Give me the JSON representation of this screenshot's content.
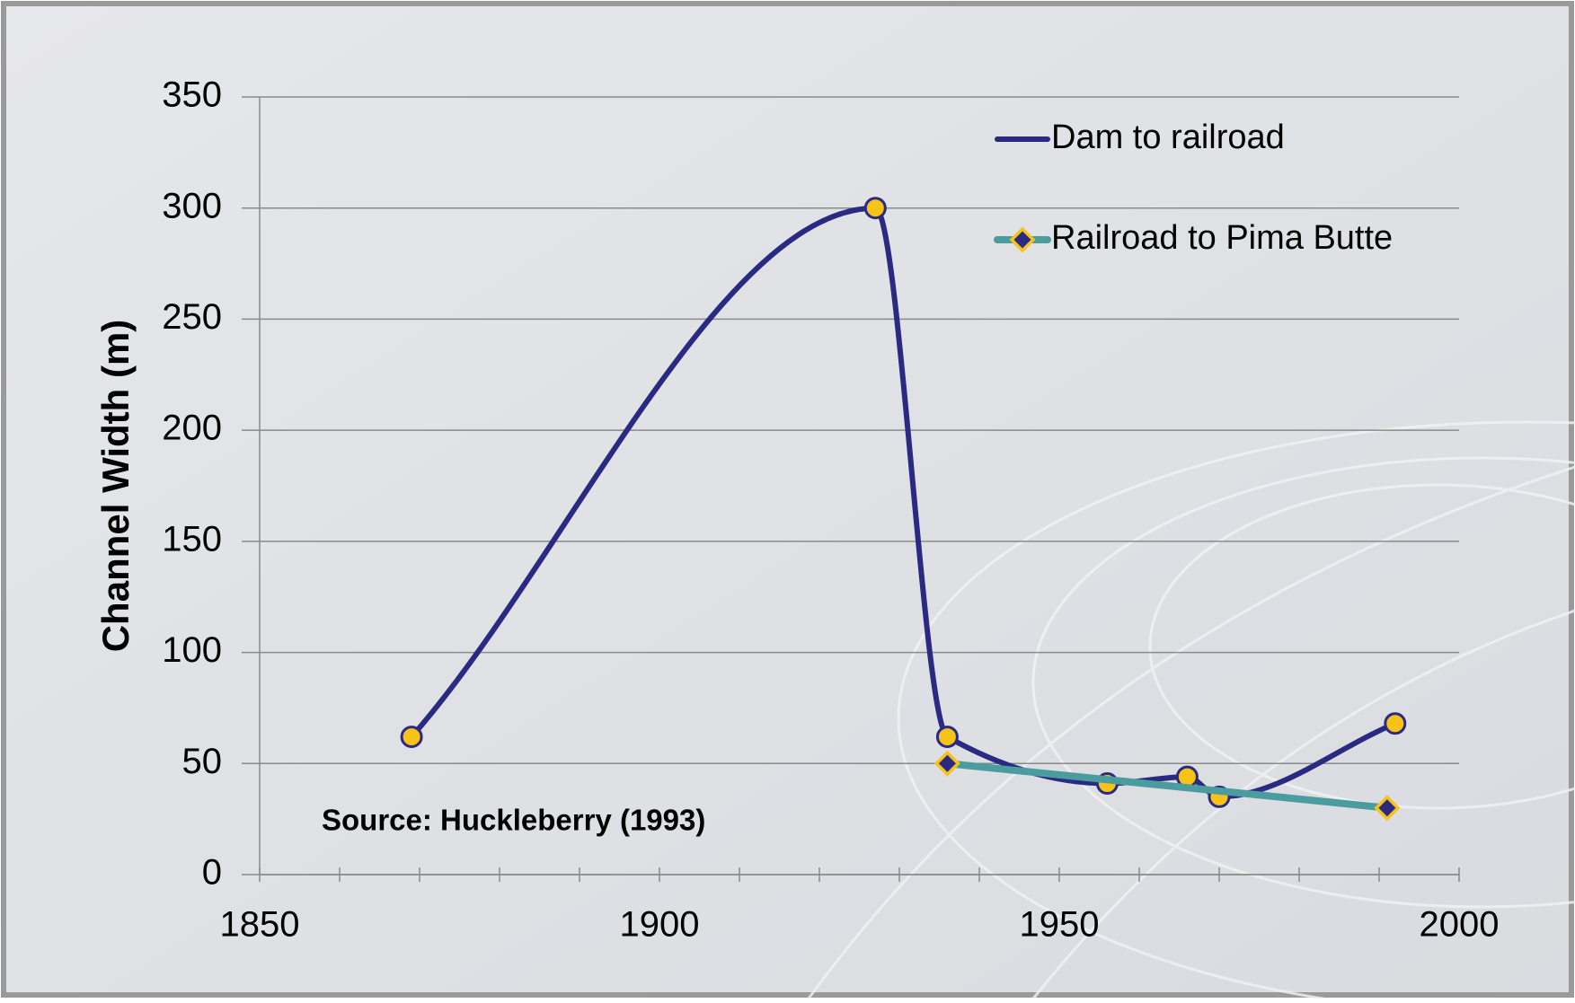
{
  "chart_data": {
    "type": "line",
    "y_label": "Channel Width (m)",
    "annotation": "Source:  Huckleberry (1993)",
    "xlim": [
      1850,
      2000
    ],
    "xticks": [
      1850,
      1900,
      1950,
      2000
    ],
    "xminorticks": [
      1860,
      1870,
      1880,
      1890,
      1910,
      1920,
      1930,
      1940,
      1960,
      1970,
      1980,
      1990
    ],
    "ylim": [
      0,
      350
    ],
    "yticks": [
      0,
      50,
      100,
      150,
      200,
      250,
      300,
      350
    ],
    "grid": true,
    "legend": "top-right",
    "smooth": true,
    "series": [
      {
        "name": "Dam to railroad",
        "color": "#2b2a82",
        "marker": "circle",
        "marker_color": "#f7c318",
        "smooth": true,
        "x": [
          1869,
          1927,
          1936,
          1956,
          1966,
          1970,
          1992
        ],
        "values": [
          62,
          300,
          62,
          41,
          44,
          35,
          68
        ]
      },
      {
        "name": "Railroad to Pima Butte",
        "color": "#4a9c9e",
        "marker": "diamond",
        "marker_color": "#2b2a82",
        "smooth": false,
        "x": [
          1936,
          1991
        ],
        "values": [
          50,
          30
        ]
      }
    ]
  }
}
